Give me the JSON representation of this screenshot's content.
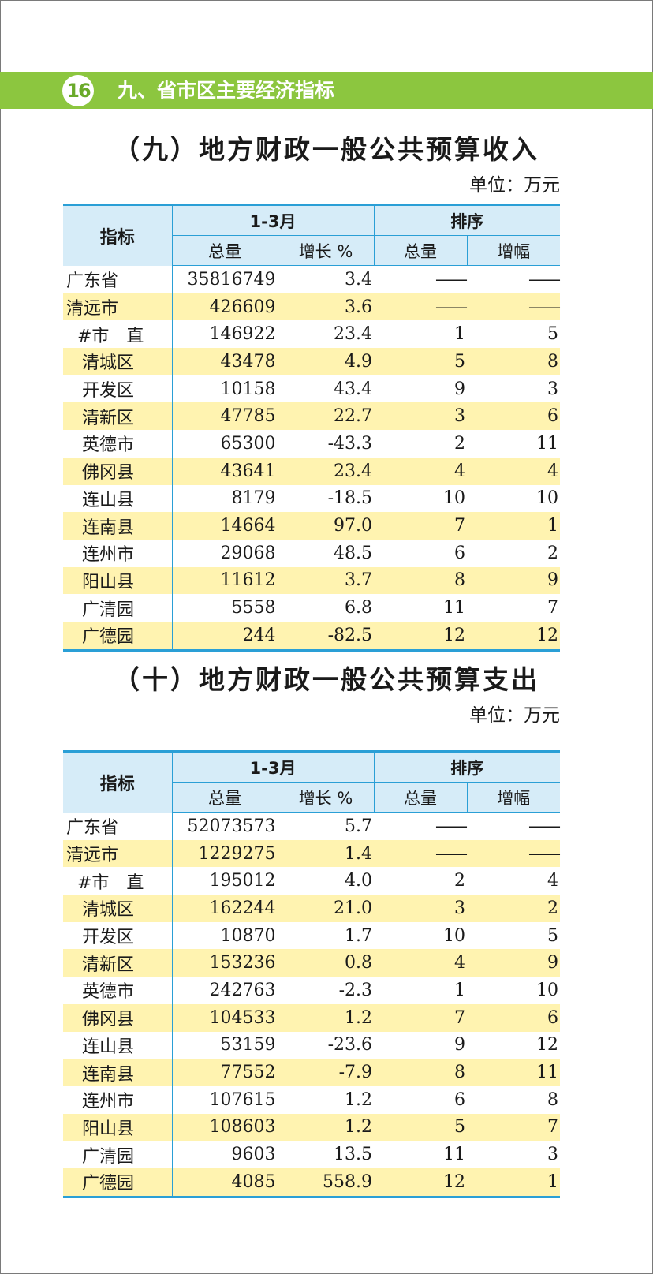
{
  "header": {
    "page_number": "16",
    "chapter_title": "九、省市区主要经济指标"
  },
  "sections": [
    {
      "title": "（九）地方财政一般公共预算收入",
      "unit": "单位：万元",
      "headers": {
        "indicator": "指标",
        "period": "1-3月",
        "rank": "排序",
        "total": "总量",
        "growth": "增长 %",
        "rank_total": "总量",
        "rank_growth": "增幅"
      },
      "rows": [
        {
          "name": "广东省",
          "total": "35816749",
          "growth": "3.4",
          "rank_total": "——",
          "rank_growth": "——"
        },
        {
          "name": "清远市",
          "total": "426609",
          "growth": "3.6",
          "rank_total": "——",
          "rank_growth": "——"
        },
        {
          "name": "#市　直",
          "total": "146922",
          "growth": "23.4",
          "rank_total": "1",
          "rank_growth": "5"
        },
        {
          "name": "清城区",
          "total": "43478",
          "growth": "4.9",
          "rank_total": "5",
          "rank_growth": "8"
        },
        {
          "name": "开发区",
          "total": "10158",
          "growth": "43.4",
          "rank_total": "9",
          "rank_growth": "3"
        },
        {
          "name": "清新区",
          "total": "47785",
          "growth": "22.7",
          "rank_total": "3",
          "rank_growth": "6"
        },
        {
          "name": "英德市",
          "total": "65300",
          "growth": "-43.3",
          "rank_total": "2",
          "rank_growth": "11"
        },
        {
          "name": "佛冈县",
          "total": "43641",
          "growth": "23.4",
          "rank_total": "4",
          "rank_growth": "4"
        },
        {
          "name": "连山县",
          "total": "8179",
          "growth": "-18.5",
          "rank_total": "10",
          "rank_growth": "10"
        },
        {
          "name": "连南县",
          "total": "14664",
          "growth": "97.0",
          "rank_total": "7",
          "rank_growth": "1"
        },
        {
          "name": "连州市",
          "total": "29068",
          "growth": "48.5",
          "rank_total": "6",
          "rank_growth": "2"
        },
        {
          "name": "阳山县",
          "total": "11612",
          "growth": "3.7",
          "rank_total": "8",
          "rank_growth": "9"
        },
        {
          "name": "广清园",
          "total": "5558",
          "growth": "6.8",
          "rank_total": "11",
          "rank_growth": "7"
        },
        {
          "name": "广德园",
          "total": "244",
          "growth": "-82.5",
          "rank_total": "12",
          "rank_growth": "12"
        }
      ]
    },
    {
      "title": "（十）地方财政一般公共预算支出",
      "unit": "单位：万元",
      "headers": {
        "indicator": "指标",
        "period": "1-3月",
        "rank": "排序",
        "total": "总量",
        "growth": "增长 %",
        "rank_total": "总量",
        "rank_growth": "增幅"
      },
      "rows": [
        {
          "name": "广东省",
          "total": "52073573",
          "growth": "5.7",
          "rank_total": "——",
          "rank_growth": "——"
        },
        {
          "name": "清远市",
          "total": "1229275",
          "growth": "1.4",
          "rank_total": "——",
          "rank_growth": "——"
        },
        {
          "name": "#市　直",
          "total": "195012",
          "growth": "4.0",
          "rank_total": "2",
          "rank_growth": "4"
        },
        {
          "name": "清城区",
          "total": "162244",
          "growth": "21.0",
          "rank_total": "3",
          "rank_growth": "2"
        },
        {
          "name": "开发区",
          "total": "10870",
          "growth": "1.7",
          "rank_total": "10",
          "rank_growth": "5"
        },
        {
          "name": "清新区",
          "total": "153236",
          "growth": "0.8",
          "rank_total": "4",
          "rank_growth": "9"
        },
        {
          "name": "英德市",
          "total": "242763",
          "growth": "-2.3",
          "rank_total": "1",
          "rank_growth": "10"
        },
        {
          "name": "佛冈县",
          "total": "104533",
          "growth": "1.2",
          "rank_total": "7",
          "rank_growth": "6"
        },
        {
          "name": "连山县",
          "total": "53159",
          "growth": "-23.6",
          "rank_total": "9",
          "rank_growth": "12"
        },
        {
          "name": "连南县",
          "total": "77552",
          "growth": "-7.9",
          "rank_total": "8",
          "rank_growth": "11"
        },
        {
          "name": "连州市",
          "total": "107615",
          "growth": "1.2",
          "rank_total": "6",
          "rank_growth": "8"
        },
        {
          "name": "阳山县",
          "total": "108603",
          "growth": "1.2",
          "rank_total": "5",
          "rank_growth": "7"
        },
        {
          "name": "广清园",
          "total": "9603",
          "growth": "13.5",
          "rank_total": "11",
          "rank_growth": "3"
        },
        {
          "name": "广德园",
          "total": "4085",
          "growth": "558.9",
          "rank_total": "12",
          "rank_growth": "1"
        }
      ]
    }
  ]
}
